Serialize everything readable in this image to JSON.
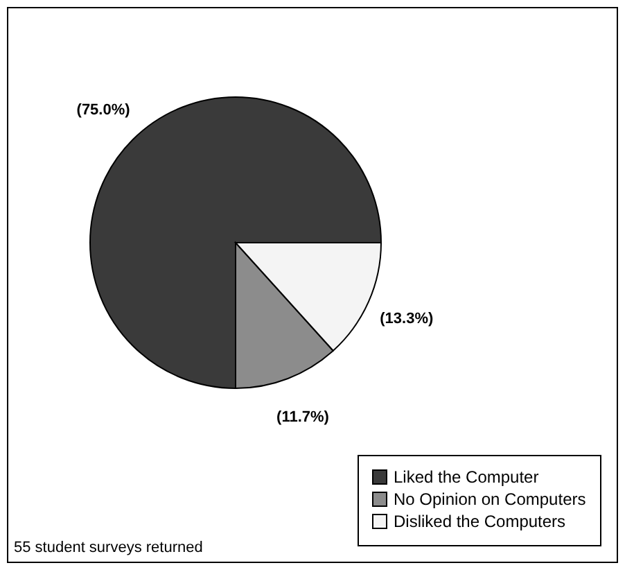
{
  "chart_data": {
    "type": "pie",
    "categories": [
      "Liked the Computer",
      "No Opinion on Computers",
      "Disliked the Computers"
    ],
    "values": [
      75.0,
      11.7,
      13.3
    ],
    "colors": [
      "#3a3a3a",
      "#8c8c8c",
      "#f4f4f4"
    ],
    "value_labels": [
      "(75.0%)",
      "(11.7%)",
      "(13.3%)"
    ],
    "legend": "bottom right",
    "annotations": [
      "55 student surveys returned"
    ]
  }
}
